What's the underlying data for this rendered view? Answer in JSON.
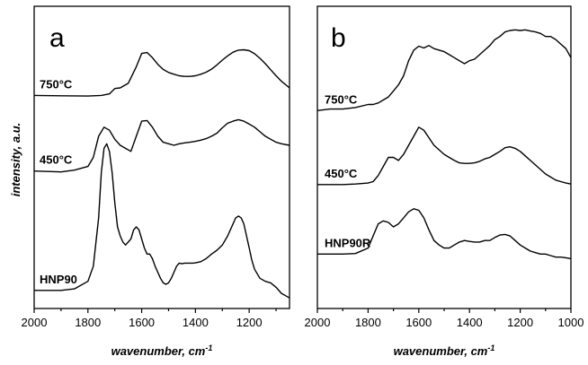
{
  "y_axis_label": "intensity, a.u.",
  "chart_data": [
    {
      "type": "line",
      "panel_label": "a",
      "xlabel": "wavenumber, cm-1",
      "xlabel_text": "wavenumber, cm",
      "xlabel_sup": "-1",
      "ylabel": "intensity, a.u.",
      "x_reversed": true,
      "xlim": [
        2000,
        1050
      ],
      "xticks": [
        "2000",
        "1800",
        "1600",
        "1400",
        "1200"
      ],
      "ylim": [
        0,
        1
      ],
      "grid": false,
      "series": [
        {
          "name": "750°C",
          "x": [
            2000,
            1900,
            1800,
            1750,
            1720,
            1700,
            1680,
            1650,
            1620,
            1600,
            1580,
            1560,
            1540,
            1520,
            1500,
            1480,
            1460,
            1440,
            1420,
            1400,
            1380,
            1360,
            1340,
            1320,
            1300,
            1280,
            1260,
            1240,
            1220,
            1200,
            1180,
            1160,
            1140,
            1120,
            1100,
            1080,
            1050
          ],
          "y": [
            0.705,
            0.704,
            0.703,
            0.705,
            0.71,
            0.728,
            0.73,
            0.745,
            0.8,
            0.844,
            0.847,
            0.83,
            0.808,
            0.791,
            0.781,
            0.775,
            0.77,
            0.768,
            0.768,
            0.77,
            0.775,
            0.782,
            0.792,
            0.806,
            0.822,
            0.836,
            0.848,
            0.855,
            0.856,
            0.853,
            0.843,
            0.828,
            0.81,
            0.79,
            0.77,
            0.752,
            0.73
          ]
        },
        {
          "name": "450°C",
          "x": [
            2000,
            1900,
            1850,
            1800,
            1780,
            1760,
            1740,
            1720,
            1700,
            1680,
            1660,
            1640,
            1620,
            1600,
            1580,
            1560,
            1540,
            1520,
            1500,
            1480,
            1460,
            1440,
            1420,
            1400,
            1380,
            1360,
            1340,
            1320,
            1300,
            1280,
            1260,
            1240,
            1220,
            1200,
            1180,
            1160,
            1140,
            1120,
            1100,
            1080,
            1050
          ],
          "y": [
            0.455,
            0.452,
            0.458,
            0.47,
            0.5,
            0.57,
            0.6,
            0.59,
            0.56,
            0.54,
            0.53,
            0.52,
            0.57,
            0.62,
            0.622,
            0.6,
            0.57,
            0.55,
            0.545,
            0.54,
            0.545,
            0.548,
            0.55,
            0.553,
            0.557,
            0.562,
            0.57,
            0.58,
            0.598,
            0.613,
            0.62,
            0.625,
            0.62,
            0.61,
            0.6,
            0.585,
            0.57,
            0.56,
            0.55,
            0.545,
            0.54
          ]
        },
        {
          "name": "HNP90",
          "x": [
            2000,
            1900,
            1850,
            1800,
            1780,
            1760,
            1750,
            1740,
            1730,
            1720,
            1710,
            1700,
            1690,
            1680,
            1670,
            1660,
            1650,
            1640,
            1630,
            1620,
            1610,
            1600,
            1590,
            1580,
            1570,
            1560,
            1550,
            1540,
            1530,
            1520,
            1510,
            1500,
            1490,
            1480,
            1470,
            1460,
            1450,
            1440,
            1430,
            1420,
            1410,
            1400,
            1380,
            1360,
            1340,
            1320,
            1300,
            1280,
            1260,
            1250,
            1240,
            1230,
            1220,
            1210,
            1200,
            1190,
            1180,
            1160,
            1140,
            1120,
            1100,
            1080,
            1050
          ],
          "y": [
            0.06,
            0.06,
            0.065,
            0.09,
            0.14,
            0.3,
            0.45,
            0.53,
            0.545,
            0.52,
            0.45,
            0.35,
            0.27,
            0.24,
            0.22,
            0.21,
            0.22,
            0.23,
            0.26,
            0.27,
            0.26,
            0.23,
            0.2,
            0.18,
            0.18,
            0.165,
            0.14,
            0.12,
            0.1,
            0.085,
            0.08,
            0.085,
            0.1,
            0.12,
            0.14,
            0.15,
            0.148,
            0.15,
            0.15,
            0.15,
            0.15,
            0.151,
            0.155,
            0.165,
            0.18,
            0.193,
            0.21,
            0.24,
            0.28,
            0.3,
            0.306,
            0.3,
            0.28,
            0.24,
            0.2,
            0.16,
            0.13,
            0.1,
            0.09,
            0.085,
            0.07,
            0.05,
            0.035
          ]
        }
      ]
    },
    {
      "type": "line",
      "panel_label": "b",
      "xlabel": "wavenumber, cm-1",
      "xlabel_text": "wavenumber, cm",
      "xlabel_sup": "-1",
      "ylabel": "",
      "x_reversed": true,
      "xlim": [
        2000,
        1000
      ],
      "xticks": [
        "2000",
        "1800",
        "1600",
        "1400",
        "1200",
        "1000"
      ],
      "ylim": [
        0,
        1
      ],
      "grid": false,
      "series": [
        {
          "name": "750°C",
          "x": [
            2000,
            1950,
            1900,
            1850,
            1800,
            1780,
            1760,
            1740,
            1720,
            1700,
            1680,
            1660,
            1640,
            1620,
            1600,
            1580,
            1560,
            1540,
            1520,
            1500,
            1480,
            1460,
            1440,
            1420,
            1400,
            1380,
            1360,
            1340,
            1320,
            1300,
            1280,
            1260,
            1240,
            1220,
            1200,
            1180,
            1160,
            1140,
            1120,
            1100,
            1080,
            1060,
            1040,
            1020,
            1000
          ],
          "y": [
            0.655,
            0.66,
            0.66,
            0.665,
            0.675,
            0.675,
            0.68,
            0.69,
            0.7,
            0.72,
            0.74,
            0.77,
            0.82,
            0.855,
            0.868,
            0.862,
            0.87,
            0.86,
            0.855,
            0.85,
            0.84,
            0.83,
            0.82,
            0.81,
            0.82,
            0.825,
            0.84,
            0.855,
            0.87,
            0.89,
            0.9,
            0.915,
            0.92,
            0.922,
            0.92,
            0.922,
            0.918,
            0.915,
            0.91,
            0.9,
            0.9,
            0.89,
            0.875,
            0.86,
            0.83
          ]
        },
        {
          "name": "450°C",
          "x": [
            2000,
            1900,
            1850,
            1800,
            1780,
            1760,
            1740,
            1720,
            1700,
            1680,
            1660,
            1640,
            1620,
            1600,
            1580,
            1560,
            1540,
            1520,
            1500,
            1480,
            1460,
            1440,
            1420,
            1400,
            1380,
            1360,
            1340,
            1320,
            1300,
            1280,
            1260,
            1240,
            1220,
            1200,
            1180,
            1160,
            1140,
            1120,
            1100,
            1080,
            1060,
            1040,
            1020,
            1000
          ],
          "y": [
            0.41,
            0.41,
            0.412,
            0.415,
            0.42,
            0.44,
            0.47,
            0.5,
            0.5,
            0.49,
            0.51,
            0.54,
            0.57,
            0.6,
            0.59,
            0.565,
            0.54,
            0.525,
            0.51,
            0.5,
            0.49,
            0.482,
            0.48,
            0.48,
            0.482,
            0.487,
            0.495,
            0.5,
            0.51,
            0.52,
            0.532,
            0.535,
            0.53,
            0.52,
            0.505,
            0.49,
            0.475,
            0.46,
            0.445,
            0.435,
            0.425,
            0.42,
            0.415,
            0.412
          ]
        },
        {
          "name": "HNP90R",
          "x": [
            2000,
            1900,
            1850,
            1800,
            1780,
            1760,
            1740,
            1720,
            1700,
            1680,
            1660,
            1640,
            1620,
            1600,
            1580,
            1560,
            1540,
            1520,
            1500,
            1480,
            1460,
            1440,
            1420,
            1400,
            1380,
            1360,
            1340,
            1320,
            1300,
            1280,
            1260,
            1240,
            1220,
            1200,
            1180,
            1160,
            1140,
            1120,
            1100,
            1080,
            1060,
            1040,
            1020,
            1000
          ],
          "y": [
            0.18,
            0.18,
            0.182,
            0.2,
            0.24,
            0.28,
            0.29,
            0.285,
            0.27,
            0.28,
            0.3,
            0.32,
            0.33,
            0.325,
            0.3,
            0.26,
            0.225,
            0.21,
            0.2,
            0.2,
            0.21,
            0.22,
            0.225,
            0.222,
            0.22,
            0.22,
            0.225,
            0.225,
            0.235,
            0.243,
            0.245,
            0.24,
            0.225,
            0.21,
            0.2,
            0.19,
            0.185,
            0.18,
            0.18,
            0.175,
            0.17,
            0.17,
            0.168,
            0.165
          ]
        }
      ]
    }
  ]
}
